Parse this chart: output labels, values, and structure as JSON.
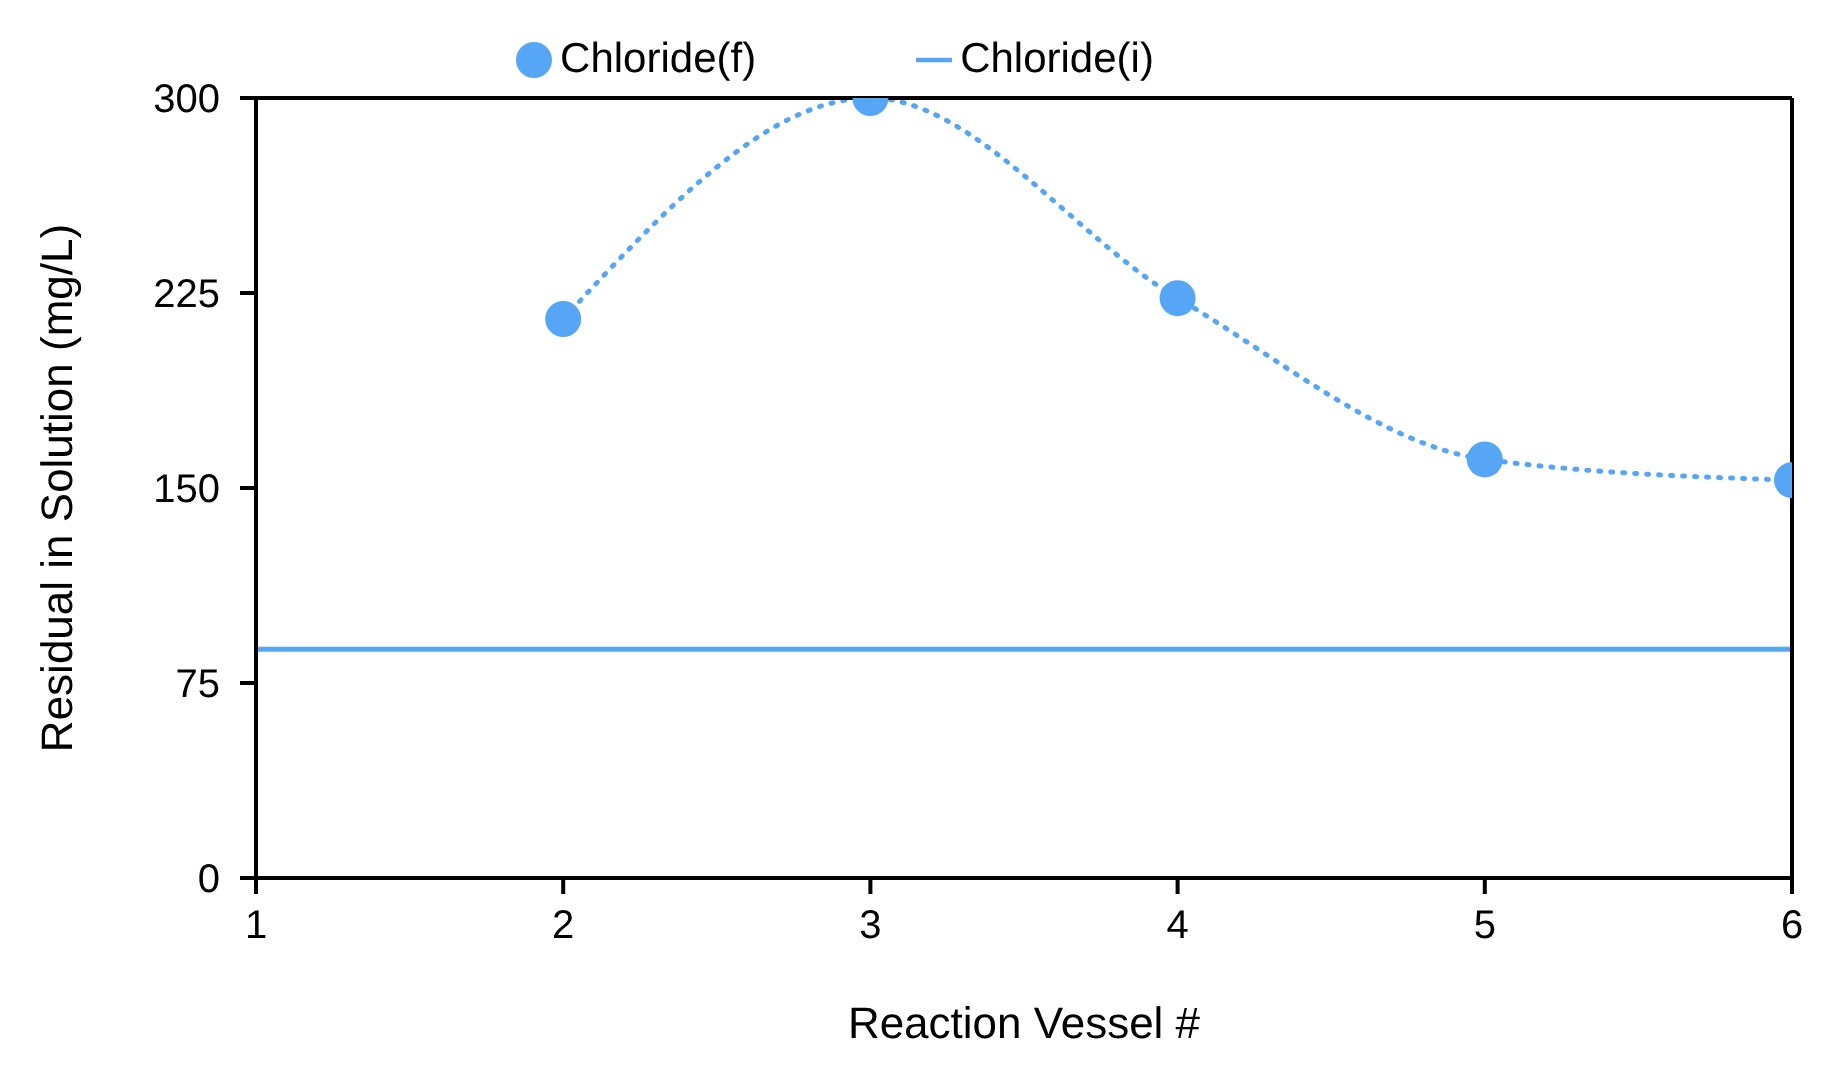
{
  "chart_data": {
    "type": "line",
    "xlabel": "Reaction Vessel #",
    "ylabel": "Residual in Solution (mg/L)",
    "xlim": [
      1,
      6
    ],
    "xticks": [
      1,
      2,
      3,
      4,
      5,
      6
    ],
    "ylim": [
      0,
      300
    ],
    "yticks": [
      0,
      75,
      150,
      225,
      300
    ],
    "legend": "top",
    "series": [
      {
        "name": "Chloride(f)",
        "color": "#55a7f5",
        "x": [
          2,
          3,
          4,
          5,
          6
        ],
        "values": [
          215,
          300,
          223,
          161,
          153
        ],
        "marker": "circle",
        "line_style": "dotted"
      },
      {
        "name": "Chloride(i)",
        "color": "#55a7f5",
        "x": [
          1,
          6
        ],
        "values": [
          88,
          88
        ],
        "marker": "none",
        "line_style": "solid"
      }
    ]
  }
}
